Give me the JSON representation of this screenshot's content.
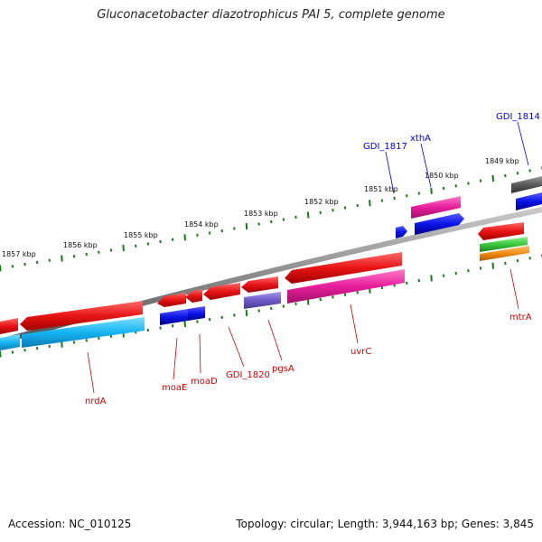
{
  "title": "Gluconacetobacter diazotrophicus PAI 5, complete genome",
  "footer": {
    "accession": "Accession: NC_010125",
    "summary": "Topology: circular; Length: 3,944,163 bp; Genes: 3,845"
  },
  "scale_labels": [
    "1857 kbp",
    "1856 kbp",
    "1855 kbp",
    "1854 kbp",
    "1853 kbp",
    "1852 kbp",
    "1851 kbp",
    "1850 kbp",
    "1849 kbp"
  ],
  "gene_labels": {
    "top": [
      "GDI_1814",
      "xthA",
      "GDI_1817"
    ],
    "bottom": [
      "nrdA",
      "moaE",
      "moaD",
      "GDI_1820",
      "pgsA",
      "uvrC",
      "mtrA"
    ]
  },
  "colors": {
    "label_top": "#0000cc",
    "label_bottom": "#cc0000",
    "ruler_ticks": "#1a7a1a",
    "gene_red": "#e81414",
    "gene_blue": "#0a14e6",
    "gene_cyan": "#14b4f0",
    "gene_pink": "#e61e9b",
    "gene_purple": "#6e5ac8",
    "gene_gray": "#5a5a5a",
    "gene_green": "#3cc83c",
    "gene_orange": "#f08c14",
    "backbone": "#8c8c8c"
  }
}
